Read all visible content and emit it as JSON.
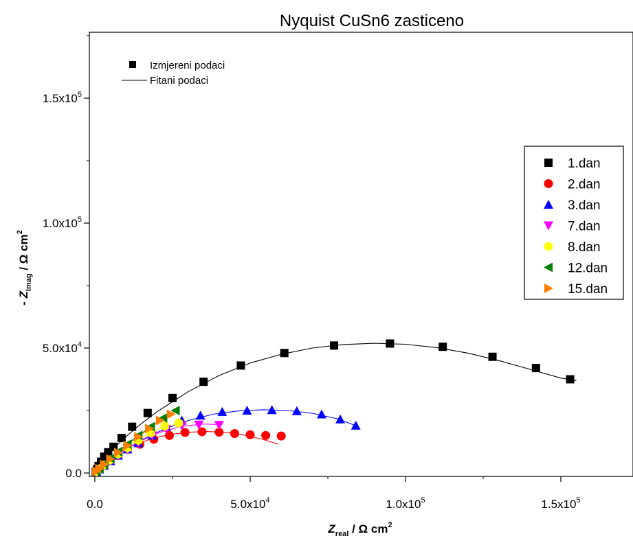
{
  "chart_data": {
    "type": "scatter",
    "title": "Nyquist CuSn6 zasticeno",
    "xlabel": {
      "main": "Z",
      "sub": "real",
      "unit": " / Ω cm",
      "sup": "2"
    },
    "ylabel": {
      "prefix": "- ",
      "main": "Z",
      "sub": "Imag",
      "unit": " / Ω cm",
      "sup": "2"
    },
    "xlim": [
      -1000,
      170000
    ],
    "ylim": [
      -1000,
      175000
    ],
    "xticks": [
      {
        "value": 0,
        "mantissa": "0.0",
        "exp": ""
      },
      {
        "value": 50000,
        "mantissa": "5.0x10",
        "exp": "4"
      },
      {
        "value": 100000,
        "mantissa": "1.0x10",
        "exp": "5"
      },
      {
        "value": 150000,
        "mantissa": "1.5x10",
        "exp": "5"
      }
    ],
    "yticks": [
      {
        "value": 0,
        "mantissa": "0.0",
        "exp": ""
      },
      {
        "value": 50000,
        "mantissa": "5.0x10",
        "exp": "4"
      },
      {
        "value": 100000,
        "mantissa": "1.0x10",
        "exp": "5"
      },
      {
        "value": 150000,
        "mantissa": "1.5x10",
        "exp": "5"
      }
    ],
    "top_legend": {
      "measured_label": "Izmjereni podaci",
      "fitted_label": "Fitani podaci"
    },
    "legend_position": "right",
    "series": [
      {
        "name": "1.dan",
        "color": "#000000",
        "marker": "square",
        "points": [
          [
            300,
            500
          ],
          [
            700,
            1500
          ],
          [
            1200,
            2800
          ],
          [
            2000,
            4500
          ],
          [
            3000,
            6500
          ],
          [
            4300,
            8300
          ],
          [
            6000,
            10500
          ],
          [
            8600,
            14000
          ],
          [
            12000,
            18500
          ],
          [
            17000,
            24000
          ],
          [
            25000,
            30000
          ],
          [
            35000,
            36500
          ],
          [
            47000,
            43000
          ],
          [
            61000,
            48000
          ],
          [
            77000,
            51000
          ],
          [
            95000,
            51800
          ],
          [
            112000,
            50500
          ],
          [
            128000,
            46500
          ],
          [
            142000,
            42000
          ],
          [
            153000,
            37500
          ]
        ],
        "fit": [
          [
            0,
            0
          ],
          [
            1000,
            2200
          ],
          [
            3000,
            5800
          ],
          [
            6000,
            9800
          ],
          [
            10000,
            14500
          ],
          [
            15000,
            19800
          ],
          [
            20000,
            24500
          ],
          [
            30000,
            32500
          ],
          [
            40000,
            39000
          ],
          [
            50000,
            44000
          ],
          [
            60000,
            47500
          ],
          [
            70000,
            50000
          ],
          [
            80000,
            51400
          ],
          [
            90000,
            51900
          ],
          [
            100000,
            51500
          ],
          [
            110000,
            50200
          ],
          [
            120000,
            48000
          ],
          [
            130000,
            45000
          ],
          [
            140000,
            41500
          ],
          [
            150000,
            38000
          ],
          [
            155000,
            37000
          ]
        ]
      },
      {
        "name": "2.dan",
        "color": "#ff0000",
        "marker": "circle",
        "points": [
          [
            500,
            500
          ],
          [
            1500,
            1500
          ],
          [
            3000,
            3000
          ],
          [
            5000,
            5000
          ],
          [
            7500,
            7000
          ],
          [
            10500,
            9500
          ],
          [
            14500,
            11500
          ],
          [
            19000,
            13500
          ],
          [
            24000,
            15000
          ],
          [
            29000,
            16200
          ],
          [
            34500,
            16500
          ],
          [
            40000,
            16300
          ],
          [
            45000,
            15800
          ],
          [
            50000,
            15300
          ],
          [
            55000,
            15000
          ],
          [
            60000,
            14800
          ]
        ],
        "fit": [
          [
            0,
            0
          ],
          [
            3000,
            3500
          ],
          [
            7000,
            7500
          ],
          [
            12000,
            10800
          ],
          [
            18000,
            13600
          ],
          [
            24000,
            15400
          ],
          [
            30000,
            16300
          ],
          [
            36000,
            16600
          ],
          [
            42000,
            16300
          ],
          [
            48000,
            15200
          ],
          [
            54000,
            13500
          ],
          [
            59000,
            11500
          ]
        ]
      },
      {
        "name": "3.dan",
        "color": "#0000ff",
        "marker": "triangle-up",
        "points": [
          [
            500,
            500
          ],
          [
            1500,
            1500
          ],
          [
            3000,
            3000
          ],
          [
            5000,
            4800
          ],
          [
            7500,
            7000
          ],
          [
            10500,
            9500
          ],
          [
            14000,
            12000
          ],
          [
            18500,
            15000
          ],
          [
            23000,
            18500
          ],
          [
            28000,
            21000
          ],
          [
            34000,
            23000
          ],
          [
            41000,
            24500
          ],
          [
            49000,
            25000
          ],
          [
            57000,
            25200
          ],
          [
            65000,
            24800
          ],
          [
            73000,
            23500
          ],
          [
            79000,
            21500
          ],
          [
            84000,
            19000
          ]
        ],
        "fit": [
          [
            0,
            0
          ],
          [
            4000,
            4200
          ],
          [
            9000,
            8800
          ],
          [
            15000,
            13200
          ],
          [
            22000,
            17400
          ],
          [
            30000,
            21000
          ],
          [
            38000,
            23500
          ],
          [
            46000,
            24800
          ],
          [
            54000,
            25300
          ],
          [
            62000,
            25000
          ],
          [
            70000,
            23900
          ],
          [
            78000,
            21700
          ],
          [
            85000,
            18500
          ]
        ]
      },
      {
        "name": "7.dan",
        "color": "#ff00ff",
        "marker": "triangle-down",
        "points": [
          [
            500,
            500
          ],
          [
            1500,
            1500
          ],
          [
            3000,
            3000
          ],
          [
            5000,
            5000
          ],
          [
            7500,
            7000
          ],
          [
            10500,
            9500
          ],
          [
            14000,
            12000
          ],
          [
            18500,
            15000
          ],
          [
            23000,
            17500
          ],
          [
            28000,
            19000
          ],
          [
            33500,
            19300
          ],
          [
            40000,
            19200
          ]
        ],
        "fit": [
          [
            0,
            0
          ],
          [
            4000,
            4200
          ],
          [
            9000,
            8800
          ],
          [
            15000,
            13000
          ],
          [
            21000,
            16300
          ],
          [
            28000,
            18700
          ],
          [
            35000,
            19600
          ],
          [
            41000,
            19300
          ]
        ]
      },
      {
        "name": "8.dan",
        "color": "#ffff00",
        "marker": "hexagon",
        "points": [
          [
            500,
            600
          ],
          [
            1500,
            1600
          ],
          [
            3000,
            3200
          ],
          [
            5000,
            5200
          ],
          [
            7500,
            7500
          ],
          [
            10500,
            10000
          ],
          [
            14000,
            13000
          ],
          [
            18000,
            16000
          ],
          [
            22500,
            18700
          ],
          [
            27000,
            20000
          ]
        ],
        "fit": [
          [
            0,
            0
          ],
          [
            4000,
            4500
          ],
          [
            9000,
            9400
          ],
          [
            14000,
            13400
          ],
          [
            20000,
            17300
          ],
          [
            27000,
            20200
          ]
        ]
      },
      {
        "name": "12.dan",
        "color": "#008000",
        "marker": "triangle-left",
        "points": [
          [
            500,
            700
          ],
          [
            1500,
            1800
          ],
          [
            3000,
            3500
          ],
          [
            5000,
            5800
          ],
          [
            7500,
            8500
          ],
          [
            10500,
            11500
          ],
          [
            14000,
            15000
          ],
          [
            18000,
            18500
          ],
          [
            22000,
            22000
          ],
          [
            26000,
            25000
          ]
        ],
        "fit": [
          [
            0,
            0
          ],
          [
            4000,
            5000
          ],
          [
            9000,
            10200
          ],
          [
            14000,
            15000
          ],
          [
            20000,
            20200
          ],
          [
            26000,
            25000
          ]
        ]
      },
      {
        "name": "15.dan",
        "color": "#ff8000",
        "marker": "triangle-right",
        "points": [
          [
            500,
            600
          ],
          [
            1500,
            1700
          ],
          [
            3000,
            3400
          ],
          [
            5000,
            5600
          ],
          [
            7500,
            8200
          ],
          [
            10500,
            11000
          ],
          [
            14000,
            14500
          ],
          [
            17500,
            17800
          ],
          [
            21000,
            21000
          ],
          [
            24500,
            23500
          ]
        ],
        "fit": [
          [
            0,
            0
          ],
          [
            4000,
            4800
          ],
          [
            9000,
            9800
          ],
          [
            14000,
            14500
          ],
          [
            19000,
            19200
          ],
          [
            24500,
            23500
          ]
        ]
      }
    ]
  }
}
